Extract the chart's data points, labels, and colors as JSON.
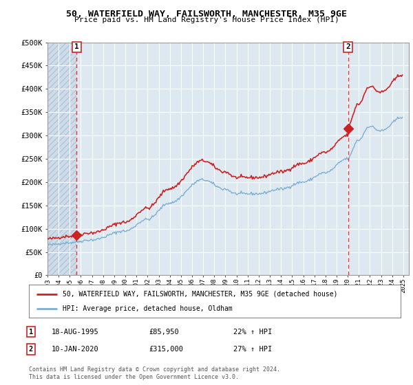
{
  "title1": "50, WATERFIELD WAY, FAILSWORTH, MANCHESTER, M35 9GE",
  "title2": "Price paid vs. HM Land Registry's House Price Index (HPI)",
  "ylabel_ticks": [
    "£0",
    "£50K",
    "£100K",
    "£150K",
    "£200K",
    "£250K",
    "£300K",
    "£350K",
    "£400K",
    "£450K",
    "£500K"
  ],
  "ytick_values": [
    0,
    50000,
    100000,
    150000,
    200000,
    250000,
    300000,
    350000,
    400000,
    450000,
    500000
  ],
  "xlim": [
    1993.0,
    2025.5
  ],
  "ylim": [
    0,
    500000
  ],
  "sale1": {
    "date_num": 1995.63,
    "price": 85950,
    "label": "1",
    "date_str": "18-AUG-1995",
    "pct": "22%"
  },
  "sale2": {
    "date_num": 2020.03,
    "price": 315000,
    "label": "2",
    "date_str": "10-JAN-2020",
    "pct": "27%"
  },
  "hpi_color": "#7bafd4",
  "price_color": "#cc2222",
  "dashed_color": "#ee3333",
  "plot_bg_color": "#dde8f0",
  "hatch_bg_color": "#c8d8e8",
  "grid_color": "#ffffff",
  "legend_label1": "50, WATERFIELD WAY, FAILSWORTH, MANCHESTER, M35 9GE (detached house)",
  "legend_label2": "HPI: Average price, detached house, Oldham",
  "footer": "Contains HM Land Registry data © Crown copyright and database right 2024.\nThis data is licensed under the Open Government Licence v3.0.",
  "xtick_years": [
    1993,
    1994,
    1995,
    1996,
    1997,
    1998,
    1999,
    2000,
    2001,
    2002,
    2003,
    2004,
    2005,
    2006,
    2007,
    2008,
    2009,
    2010,
    2011,
    2012,
    2013,
    2014,
    2015,
    2016,
    2017,
    2018,
    2019,
    2020,
    2021,
    2022,
    2023,
    2024,
    2025
  ]
}
